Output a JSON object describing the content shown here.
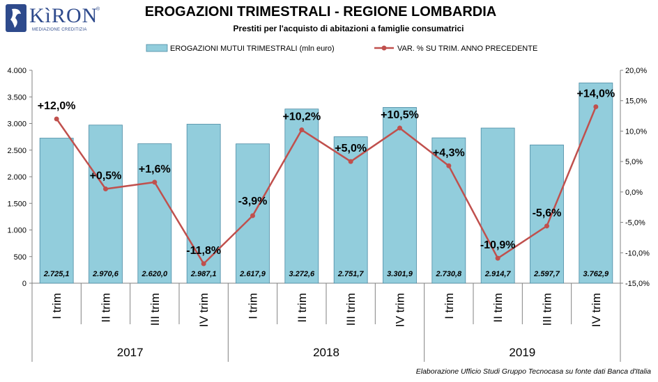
{
  "logo": {
    "brand": "KìRON",
    "registered": "®",
    "tagline": "MEDIAZIONE CREDITIZIA"
  },
  "header": {
    "title": "EROGAZIONI TRIMESTRALI - REGIONE LOMBARDIA",
    "subtitle": "Prestiti per l'acquisto di abitazioni a famiglie consumatrici"
  },
  "footer": {
    "source": "Elaborazione Ufficio Studi Gruppo Tecnocasa su fonte dati Banca d'Italia"
  },
  "colors": {
    "bar": "#92cddc",
    "bar_border": "#4a8aa3",
    "line": "#c0504d",
    "logo": "#2e4a8c"
  },
  "chart_data": {
    "type": "bar",
    "categories": [
      "I trim",
      "II trim",
      "III trim",
      "IV trim",
      "I trim",
      "II trim",
      "III trim",
      "IV trim",
      "I trim",
      "II trim",
      "III trim",
      "IV trim"
    ],
    "groups": [
      {
        "label": "2017",
        "count": 4
      },
      {
        "label": "2018",
        "count": 4
      },
      {
        "label": "2019",
        "count": 4
      }
    ],
    "series": [
      {
        "name": "EROGAZIONI MUTUI TRIMESTRALI (mln euro)",
        "type": "bar",
        "axis": "left",
        "values": [
          2725.1,
          2970.6,
          2620.0,
          2987.1,
          2617.9,
          3272.6,
          2751.7,
          3301.9,
          2730.8,
          2914.7,
          2597.7,
          3762.9
        ],
        "labels": [
          "2.725,1",
          "2.970,6",
          "2.620,0",
          "2.987,1",
          "2.617,9",
          "3.272,6",
          "2.751,7",
          "3.301,9",
          "2.730,8",
          "2.914,7",
          "2.597,7",
          "3.762,9"
        ]
      },
      {
        "name": "VAR. % SU TRIM. ANNO PRECEDENTE",
        "type": "line",
        "axis": "right",
        "values": [
          12.0,
          0.5,
          1.6,
          -11.8,
          -3.9,
          10.2,
          5.0,
          10.5,
          4.3,
          -10.9,
          -5.6,
          14.0
        ],
        "labels": [
          "+12,0%",
          "+0,5%",
          "+1,6%",
          "-11,8%",
          "-3,9%",
          "+10,2%",
          "+5,0%",
          "+10,5%",
          "+4,3%",
          "-10,9%",
          "-5,6%",
          "+14,0%"
        ]
      }
    ],
    "y_left": {
      "ylim": [
        0,
        4000
      ],
      "ticks": [
        0,
        500,
        1000,
        1500,
        2000,
        2500,
        3000,
        3500,
        4000
      ],
      "tick_labels": [
        "0",
        "500",
        "1.000",
        "1.500",
        "2.000",
        "2.500",
        "3.000",
        "3.500",
        "4.000"
      ]
    },
    "y_right": {
      "ylim": [
        -15,
        20
      ],
      "ticks": [
        -15,
        -10,
        -5,
        0,
        5,
        10,
        15,
        20
      ],
      "tick_labels": [
        "-15,0%",
        "-10,0%",
        "-5,0%",
        "0,0%",
        "5,0%",
        "10,0%",
        "15,0%",
        "20,0%"
      ]
    },
    "legend": "top",
    "grid": false
  }
}
